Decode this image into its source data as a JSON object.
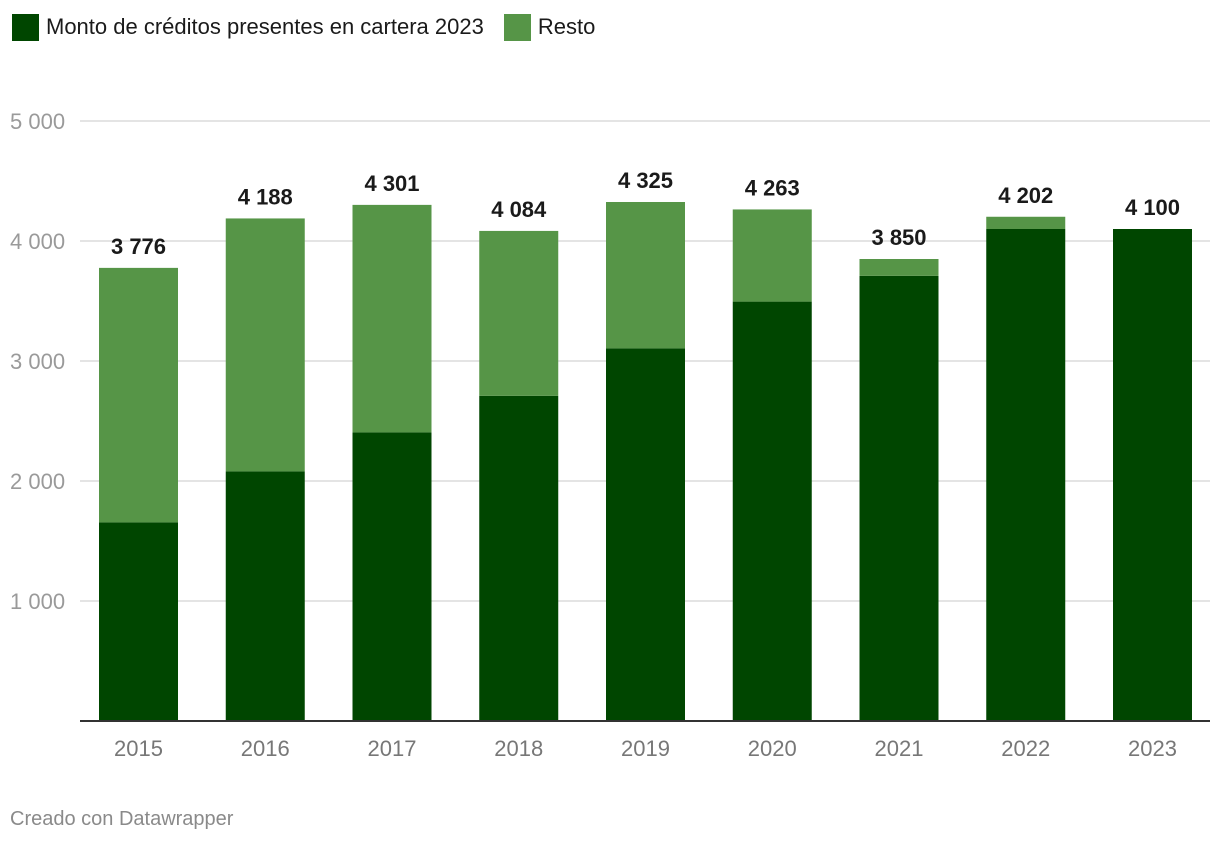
{
  "legend": {
    "items": [
      {
        "label": "Monto de créditos presentes en cartera 2023",
        "color": "#004600"
      },
      {
        "label": "Resto",
        "color": "#569547"
      }
    ]
  },
  "footer": {
    "credit": "Creado con Datawrapper"
  },
  "chart_data": {
    "type": "bar",
    "stacked": true,
    "categories": [
      "2015",
      "2016",
      "2017",
      "2018",
      "2019",
      "2020",
      "2021",
      "2022",
      "2023"
    ],
    "series": [
      {
        "name": "Monto de créditos presentes en cartera 2023",
        "color": "#004600",
        "values": [
          1655,
          2080,
          2405,
          2710,
          3105,
          3495,
          3710,
          4100,
          4100
        ]
      },
      {
        "name": "Resto",
        "color": "#569547",
        "values": [
          2121,
          2108,
          1896,
          1374,
          1220,
          768,
          140,
          102,
          0
        ]
      }
    ],
    "totals": [
      3776,
      4188,
      4301,
      4084,
      4325,
      4263,
      3850,
      4202,
      4100
    ],
    "total_labels": [
      "3 776",
      "4 188",
      "4 301",
      "4 084",
      "4 325",
      "4 263",
      "3 850",
      "4 202",
      "4 100"
    ],
    "ylim": [
      0,
      5000
    ],
    "yticks": [
      1000,
      2000,
      3000,
      4000,
      5000
    ],
    "ytick_labels": [
      "1 000",
      "2 000",
      "3 000",
      "4 000",
      "5 000"
    ],
    "grid": true,
    "legend_position": "top-left"
  }
}
